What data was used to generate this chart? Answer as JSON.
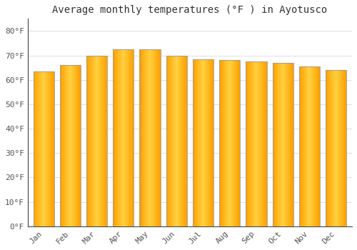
{
  "title": "Average monthly temperatures (°F ) in Ayotusco",
  "months": [
    "Jan",
    "Feb",
    "Mar",
    "Apr",
    "May",
    "Jun",
    "Jul",
    "Aug",
    "Sep",
    "Oct",
    "Nov",
    "Dec"
  ],
  "values": [
    63.5,
    66.0,
    70.0,
    72.5,
    72.5,
    70.0,
    68.5,
    68.0,
    67.5,
    67.0,
    65.5,
    64.0
  ],
  "bar_color_center": "#FFD040",
  "bar_color_edge": "#F5A000",
  "bar_border_color": "#999999",
  "background_color": "#FFFFFF",
  "plot_bg_color": "#FFFFFF",
  "grid_color": "#DDDDDD",
  "text_color": "#555555",
  "title_color": "#333333",
  "ylim": [
    0,
    85
  ],
  "yticks": [
    0,
    10,
    20,
    30,
    40,
    50,
    60,
    70,
    80
  ],
  "ytick_labels": [
    "0°F",
    "10°F",
    "20°F",
    "30°F",
    "40°F",
    "50°F",
    "60°F",
    "70°F",
    "80°F"
  ],
  "title_fontsize": 10,
  "tick_fontsize": 8,
  "bar_width": 0.78
}
